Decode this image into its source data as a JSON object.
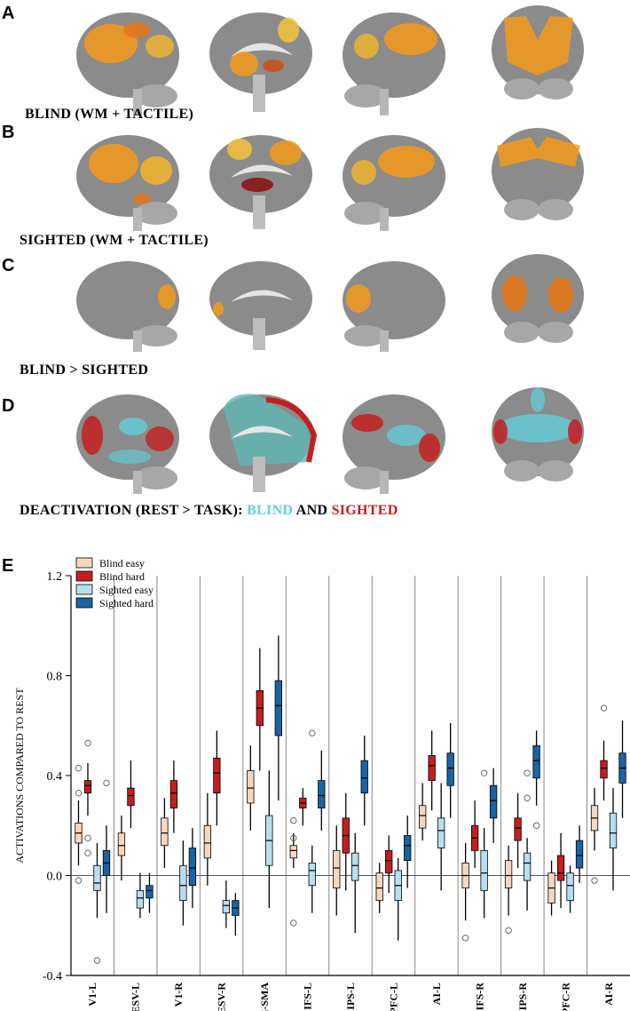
{
  "panels": {
    "a": {
      "letter": "A",
      "caption": "BLIND (WM + TACTILE)"
    },
    "b": {
      "letter": "B",
      "caption": "SIGHTED (WM + TACTILE)"
    },
    "c": {
      "letter": "C",
      "caption": "BLIND > SIGHTED"
    },
    "d": {
      "letter": "D",
      "caption_prefix": "DEACTIVATION (REST > TASK): ",
      "caption_blind": "BLIND",
      "caption_and": " AND ",
      "caption_sighted": "SIGHTED"
    },
    "e": {
      "letter": "E"
    }
  },
  "colors": {
    "blind_easy": "#f6d7bd",
    "blind_hard": "#c41e1e",
    "sighted_easy": "#b7def3",
    "sighted_hard": "#1b63a4",
    "deactivation_blind": "#5fd3df",
    "deactivation_sighted": "#c41e1e",
    "activation_hot": "#f39a1b",
    "brain_gray": "#8b8b8b"
  },
  "chart_data": {
    "type": "box",
    "ylabel": "ACTIVATIONS COMPARED TO REST",
    "ylim": [
      -0.4,
      1.2
    ],
    "yticks": [
      "-0.4",
      "0.0",
      "0.4",
      "0.8",
      "1.2"
    ],
    "grid": "vertical separators between regions",
    "legend_position": "top-left",
    "categories": [
      "V1-L",
      "ESV-L",
      "V1-R",
      "ESV-R",
      "PRE-SMA",
      "IFS-L",
      "IPS-L",
      "APFC-L",
      "AI-L",
      "IFS-R",
      "IPS-R",
      "APFC-R",
      "AI-R"
    ],
    "series": [
      {
        "name": "Blind easy",
        "boxes": [
          {
            "q1": 0.13,
            "med": 0.17,
            "q3": 0.21,
            "lo": 0.04,
            "hi": 0.3,
            "out": [
              0.33,
              0.43,
              -0.02
            ]
          },
          {
            "q1": 0.08,
            "med": 0.12,
            "q3": 0.17,
            "lo": -0.02,
            "hi": 0.24,
            "out": []
          },
          {
            "q1": 0.12,
            "med": 0.17,
            "q3": 0.23,
            "lo": 0.03,
            "hi": 0.31,
            "out": []
          },
          {
            "q1": 0.07,
            "med": 0.13,
            "q3": 0.2,
            "lo": -0.04,
            "hi": 0.33,
            "out": []
          },
          {
            "q1": 0.29,
            "med": 0.35,
            "q3": 0.42,
            "lo": 0.18,
            "hi": 0.52,
            "out": []
          },
          {
            "q1": 0.07,
            "med": 0.1,
            "q3": 0.12,
            "lo": 0.03,
            "hi": 0.17,
            "out": [
              0.22,
              0.15,
              -0.19
            ]
          },
          {
            "q1": -0.05,
            "med": 0.03,
            "q3": 0.1,
            "lo": -0.16,
            "hi": 0.2,
            "out": []
          },
          {
            "q1": -0.1,
            "med": -0.05,
            "q3": 0.01,
            "lo": -0.15,
            "hi": 0.05,
            "out": []
          },
          {
            "q1": 0.19,
            "med": 0.24,
            "q3": 0.28,
            "lo": 0.14,
            "hi": 0.37,
            "out": []
          },
          {
            "q1": -0.05,
            "med": 0.0,
            "q3": 0.05,
            "lo": -0.18,
            "hi": 0.13,
            "out": [
              -0.25
            ]
          },
          {
            "q1": -0.05,
            "med": 0.0,
            "q3": 0.06,
            "lo": -0.16,
            "hi": 0.12,
            "out": [
              -0.22
            ]
          },
          {
            "q1": -0.11,
            "med": -0.05,
            "q3": 0.01,
            "lo": -0.16,
            "hi": 0.06,
            "out": []
          },
          {
            "q1": 0.18,
            "med": 0.23,
            "q3": 0.28,
            "lo": 0.1,
            "hi": 0.35,
            "out": [
              -0.02
            ]
          }
        ]
      },
      {
        "name": "Blind hard",
        "boxes": [
          {
            "q1": 0.33,
            "med": 0.36,
            "q3": 0.38,
            "lo": 0.24,
            "hi": 0.45,
            "out": [
              0.53,
              0.15,
              0.09
            ]
          },
          {
            "q1": 0.28,
            "med": 0.32,
            "q3": 0.35,
            "lo": 0.19,
            "hi": 0.46,
            "out": []
          },
          {
            "q1": 0.27,
            "med": 0.33,
            "q3": 0.38,
            "lo": 0.17,
            "hi": 0.46,
            "out": []
          },
          {
            "q1": 0.33,
            "med": 0.41,
            "q3": 0.47,
            "lo": 0.2,
            "hi": 0.58,
            "out": []
          },
          {
            "q1": 0.6,
            "med": 0.67,
            "q3": 0.74,
            "lo": 0.42,
            "hi": 0.91,
            "out": []
          },
          {
            "q1": 0.27,
            "med": 0.29,
            "q3": 0.31,
            "lo": 0.2,
            "hi": 0.35,
            "out": []
          },
          {
            "q1": 0.09,
            "med": 0.16,
            "q3": 0.23,
            "lo": -0.06,
            "hi": 0.33,
            "out": []
          },
          {
            "q1": 0.01,
            "med": 0.06,
            "q3": 0.1,
            "lo": -0.07,
            "hi": 0.16,
            "out": []
          },
          {
            "q1": 0.38,
            "med": 0.44,
            "q3": 0.48,
            "lo": 0.26,
            "hi": 0.58,
            "out": []
          },
          {
            "q1": 0.1,
            "med": 0.15,
            "q3": 0.2,
            "lo": 0.03,
            "hi": 0.3,
            "out": []
          },
          {
            "q1": 0.14,
            "med": 0.19,
            "q3": 0.23,
            "lo": 0.03,
            "hi": 0.33,
            "out": []
          },
          {
            "q1": -0.02,
            "med": 0.01,
            "q3": 0.08,
            "lo": -0.13,
            "hi": 0.17,
            "out": []
          },
          {
            "q1": 0.39,
            "med": 0.43,
            "q3": 0.46,
            "lo": 0.3,
            "hi": 0.54,
            "out": [
              0.67
            ]
          }
        ]
      },
      {
        "name": "Sighted easy",
        "boxes": [
          {
            "q1": -0.06,
            "med": -0.03,
            "q3": 0.04,
            "lo": -0.17,
            "hi": 0.13,
            "out": [
              -0.34
            ]
          },
          {
            "q1": -0.13,
            "med": -0.09,
            "q3": -0.06,
            "lo": -0.17,
            "hi": 0.01,
            "out": []
          },
          {
            "q1": -0.1,
            "med": -0.04,
            "q3": 0.04,
            "lo": -0.2,
            "hi": 0.14,
            "out": []
          },
          {
            "q1": -0.15,
            "med": -0.12,
            "q3": -0.1,
            "lo": -0.21,
            "hi": -0.02,
            "out": []
          },
          {
            "q1": 0.04,
            "med": 0.14,
            "q3": 0.24,
            "lo": -0.13,
            "hi": 0.42,
            "out": []
          },
          {
            "q1": -0.04,
            "med": 0.02,
            "q3": 0.05,
            "lo": -0.15,
            "hi": 0.12,
            "out": [
              0.57
            ]
          },
          {
            "q1": -0.02,
            "med": 0.04,
            "q3": 0.09,
            "lo": -0.23,
            "hi": 0.17,
            "out": []
          },
          {
            "q1": -0.1,
            "med": -0.04,
            "q3": 0.02,
            "lo": -0.26,
            "hi": 0.07,
            "out": []
          },
          {
            "q1": 0.11,
            "med": 0.18,
            "q3": 0.23,
            "lo": -0.06,
            "hi": 0.37,
            "out": []
          },
          {
            "q1": -0.06,
            "med": 0.01,
            "q3": 0.1,
            "lo": -0.17,
            "hi": 0.19,
            "out": [
              0.41
            ]
          },
          {
            "q1": -0.02,
            "med": 0.05,
            "q3": 0.09,
            "lo": -0.14,
            "hi": 0.15,
            "out": [
              0.31,
              0.41
            ]
          },
          {
            "q1": -0.1,
            "med": -0.04,
            "q3": 0.01,
            "lo": -0.15,
            "hi": 0.04,
            "out": []
          },
          {
            "q1": 0.11,
            "med": 0.17,
            "q3": 0.25,
            "lo": -0.06,
            "hi": 0.35,
            "out": []
          }
        ]
      },
      {
        "name": "Sighted hard",
        "boxes": [
          {
            "q1": 0.0,
            "med": 0.05,
            "q3": 0.1,
            "lo": -0.15,
            "hi": 0.2,
            "out": [
              0.37
            ]
          },
          {
            "q1": -0.09,
            "med": -0.06,
            "q3": -0.04,
            "lo": -0.15,
            "hi": 0.01,
            "out": []
          },
          {
            "q1": -0.04,
            "med": 0.03,
            "q3": 0.11,
            "lo": -0.13,
            "hi": 0.19,
            "out": []
          },
          {
            "q1": -0.16,
            "med": -0.13,
            "q3": -0.1,
            "lo": -0.24,
            "hi": -0.07,
            "out": []
          },
          {
            "q1": 0.56,
            "med": 0.68,
            "q3": 0.78,
            "lo": 0.3,
            "hi": 0.96,
            "out": []
          },
          {
            "q1": 0.27,
            "med": 0.32,
            "q3": 0.38,
            "lo": 0.18,
            "hi": 0.5,
            "out": []
          },
          {
            "q1": 0.33,
            "med": 0.39,
            "q3": 0.46,
            "lo": 0.2,
            "hi": 0.56,
            "out": []
          },
          {
            "q1": 0.06,
            "med": 0.12,
            "q3": 0.16,
            "lo": -0.05,
            "hi": 0.24,
            "out": []
          },
          {
            "q1": 0.36,
            "med": 0.43,
            "q3": 0.49,
            "lo": 0.23,
            "hi": 0.61,
            "out": []
          },
          {
            "q1": 0.23,
            "med": 0.3,
            "q3": 0.36,
            "lo": 0.13,
            "hi": 0.43,
            "out": []
          },
          {
            "q1": 0.39,
            "med": 0.46,
            "q3": 0.52,
            "lo": 0.28,
            "hi": 0.58,
            "out": [
              0.2
            ]
          },
          {
            "q1": 0.03,
            "med": 0.08,
            "q3": 0.14,
            "lo": -0.03,
            "hi": 0.2,
            "out": []
          },
          {
            "q1": 0.37,
            "med": 0.43,
            "q3": 0.49,
            "lo": 0.23,
            "hi": 0.62,
            "out": []
          }
        ]
      }
    ]
  }
}
